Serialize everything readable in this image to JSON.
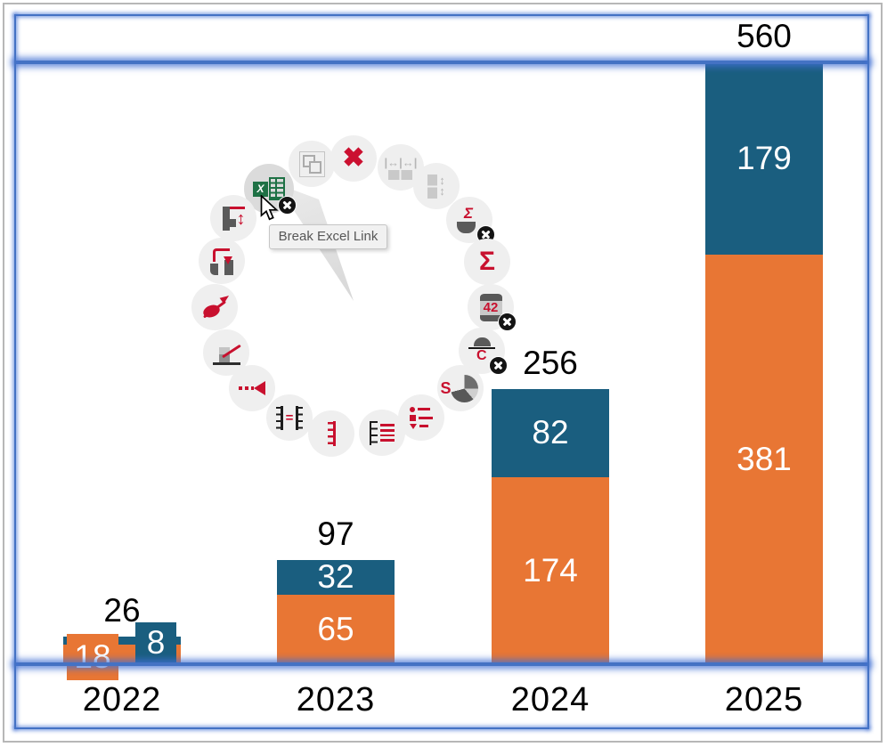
{
  "chart_data": {
    "type": "bar",
    "stacked": true,
    "title": "",
    "categories": [
      "2022",
      "2023",
      "2024",
      "2025"
    ],
    "series": [
      {
        "name": "orange",
        "color": "#E87634",
        "values": [
          18,
          65,
          174,
          381
        ]
      },
      {
        "name": "blue",
        "color": "#1A5E7F",
        "values": [
          8,
          32,
          82,
          179
        ]
      }
    ],
    "totals": [
      26,
      97,
      256,
      560
    ],
    "value_labels": "white numbers inside segments; 2022 labels shown in colored boxes outside the small segments",
    "total_labels": "black numbers above each column",
    "axis": {
      "gridlines": false,
      "value_axis_visible": false
    },
    "label_color_inside": "#ffffff",
    "label_color_total": "#000000"
  },
  "frame": {
    "accent_blue": "#4472C4",
    "outer_gray": "#B7B7B7",
    "description": "slide with blue glowing frame: top band, plot area, bottom category band"
  },
  "menu": {
    "tooltip": "Break Excel Link",
    "items": [
      {
        "name": "break-excel-link",
        "glyph": "excel",
        "text": "X",
        "badge": true,
        "state": "hover"
      },
      {
        "name": "group-objects",
        "glyph": "group",
        "state": "disabled"
      },
      {
        "name": "delete",
        "glyph": "delete",
        "text": "✖",
        "state": "enabled"
      },
      {
        "name": "same-width",
        "glyph": "width",
        "text": "|↔|↔|",
        "state": "disabled"
      },
      {
        "name": "same-height",
        "glyph": "height",
        "text": "↕",
        "state": "disabled"
      },
      {
        "name": "remove-total-label",
        "glyph": "sum-off",
        "text": "Σ",
        "badge": true,
        "state": "enabled"
      },
      {
        "name": "add-total-label",
        "glyph": "sum",
        "text": "Σ",
        "state": "enabled"
      },
      {
        "name": "remove-value-labels",
        "glyph": "cyl",
        "text": "42",
        "badge": true,
        "state": "enabled"
      },
      {
        "name": "remove-cagr-label",
        "glyph": "cagr",
        "text": "C",
        "badge": true,
        "state": "enabled"
      },
      {
        "name": "series-label",
        "glyph": "pie-s",
        "text": "S",
        "state": "enabled"
      },
      {
        "name": "legend",
        "glyph": "legend",
        "state": "enabled"
      },
      {
        "name": "text-labels",
        "glyph": "text-lines",
        "state": "enabled"
      },
      {
        "name": "value-axis",
        "glyph": "bracket",
        "state": "enabled"
      },
      {
        "name": "same-scale",
        "glyph": "same-scale",
        "text": "=",
        "state": "enabled"
      },
      {
        "name": "value-line",
        "glyph": "value-line",
        "state": "enabled"
      },
      {
        "name": "trendline",
        "glyph": "trend",
        "state": "enabled"
      },
      {
        "name": "growth-arrow",
        "glyph": "ellipse-arrow",
        "state": "enabled"
      },
      {
        "name": "segment-connector",
        "glyph": "connector",
        "state": "enabled"
      },
      {
        "name": "segment-height",
        "glyph": "seg-height",
        "text": "↕",
        "state": "enabled"
      }
    ]
  }
}
